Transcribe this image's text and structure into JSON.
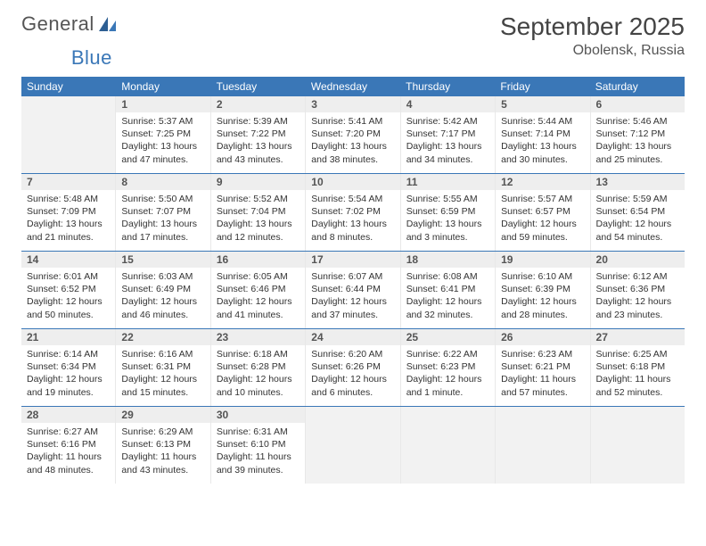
{
  "logo": {
    "text1": "General",
    "text2": "Blue"
  },
  "title": "September 2025",
  "location": "Obolensk, Russia",
  "weekdays": [
    "Sunday",
    "Monday",
    "Tuesday",
    "Wednesday",
    "Thursday",
    "Friday",
    "Saturday"
  ],
  "colors": {
    "header_bg": "#3a77b7",
    "header_fg": "#ffffff",
    "daynum_bg": "#eeeeee",
    "empty_bg": "#f2f2f2",
    "border": "#3a77b7",
    "text": "#333333"
  },
  "weeks": [
    [
      null,
      {
        "n": "1",
        "sunrise": "Sunrise: 5:37 AM",
        "sunset": "Sunset: 7:25 PM",
        "daylight": "Daylight: 13 hours and 47 minutes."
      },
      {
        "n": "2",
        "sunrise": "Sunrise: 5:39 AM",
        "sunset": "Sunset: 7:22 PM",
        "daylight": "Daylight: 13 hours and 43 minutes."
      },
      {
        "n": "3",
        "sunrise": "Sunrise: 5:41 AM",
        "sunset": "Sunset: 7:20 PM",
        "daylight": "Daylight: 13 hours and 38 minutes."
      },
      {
        "n": "4",
        "sunrise": "Sunrise: 5:42 AM",
        "sunset": "Sunset: 7:17 PM",
        "daylight": "Daylight: 13 hours and 34 minutes."
      },
      {
        "n": "5",
        "sunrise": "Sunrise: 5:44 AM",
        "sunset": "Sunset: 7:14 PM",
        "daylight": "Daylight: 13 hours and 30 minutes."
      },
      {
        "n": "6",
        "sunrise": "Sunrise: 5:46 AM",
        "sunset": "Sunset: 7:12 PM",
        "daylight": "Daylight: 13 hours and 25 minutes."
      }
    ],
    [
      {
        "n": "7",
        "sunrise": "Sunrise: 5:48 AM",
        "sunset": "Sunset: 7:09 PM",
        "daylight": "Daylight: 13 hours and 21 minutes."
      },
      {
        "n": "8",
        "sunrise": "Sunrise: 5:50 AM",
        "sunset": "Sunset: 7:07 PM",
        "daylight": "Daylight: 13 hours and 17 minutes."
      },
      {
        "n": "9",
        "sunrise": "Sunrise: 5:52 AM",
        "sunset": "Sunset: 7:04 PM",
        "daylight": "Daylight: 13 hours and 12 minutes."
      },
      {
        "n": "10",
        "sunrise": "Sunrise: 5:54 AM",
        "sunset": "Sunset: 7:02 PM",
        "daylight": "Daylight: 13 hours and 8 minutes."
      },
      {
        "n": "11",
        "sunrise": "Sunrise: 5:55 AM",
        "sunset": "Sunset: 6:59 PM",
        "daylight": "Daylight: 13 hours and 3 minutes."
      },
      {
        "n": "12",
        "sunrise": "Sunrise: 5:57 AM",
        "sunset": "Sunset: 6:57 PM",
        "daylight": "Daylight: 12 hours and 59 minutes."
      },
      {
        "n": "13",
        "sunrise": "Sunrise: 5:59 AM",
        "sunset": "Sunset: 6:54 PM",
        "daylight": "Daylight: 12 hours and 54 minutes."
      }
    ],
    [
      {
        "n": "14",
        "sunrise": "Sunrise: 6:01 AM",
        "sunset": "Sunset: 6:52 PM",
        "daylight": "Daylight: 12 hours and 50 minutes."
      },
      {
        "n": "15",
        "sunrise": "Sunrise: 6:03 AM",
        "sunset": "Sunset: 6:49 PM",
        "daylight": "Daylight: 12 hours and 46 minutes."
      },
      {
        "n": "16",
        "sunrise": "Sunrise: 6:05 AM",
        "sunset": "Sunset: 6:46 PM",
        "daylight": "Daylight: 12 hours and 41 minutes."
      },
      {
        "n": "17",
        "sunrise": "Sunrise: 6:07 AM",
        "sunset": "Sunset: 6:44 PM",
        "daylight": "Daylight: 12 hours and 37 minutes."
      },
      {
        "n": "18",
        "sunrise": "Sunrise: 6:08 AM",
        "sunset": "Sunset: 6:41 PM",
        "daylight": "Daylight: 12 hours and 32 minutes."
      },
      {
        "n": "19",
        "sunrise": "Sunrise: 6:10 AM",
        "sunset": "Sunset: 6:39 PM",
        "daylight": "Daylight: 12 hours and 28 minutes."
      },
      {
        "n": "20",
        "sunrise": "Sunrise: 6:12 AM",
        "sunset": "Sunset: 6:36 PM",
        "daylight": "Daylight: 12 hours and 23 minutes."
      }
    ],
    [
      {
        "n": "21",
        "sunrise": "Sunrise: 6:14 AM",
        "sunset": "Sunset: 6:34 PM",
        "daylight": "Daylight: 12 hours and 19 minutes."
      },
      {
        "n": "22",
        "sunrise": "Sunrise: 6:16 AM",
        "sunset": "Sunset: 6:31 PM",
        "daylight": "Daylight: 12 hours and 15 minutes."
      },
      {
        "n": "23",
        "sunrise": "Sunrise: 6:18 AM",
        "sunset": "Sunset: 6:28 PM",
        "daylight": "Daylight: 12 hours and 10 minutes."
      },
      {
        "n": "24",
        "sunrise": "Sunrise: 6:20 AM",
        "sunset": "Sunset: 6:26 PM",
        "daylight": "Daylight: 12 hours and 6 minutes."
      },
      {
        "n": "25",
        "sunrise": "Sunrise: 6:22 AM",
        "sunset": "Sunset: 6:23 PM",
        "daylight": "Daylight: 12 hours and 1 minute."
      },
      {
        "n": "26",
        "sunrise": "Sunrise: 6:23 AM",
        "sunset": "Sunset: 6:21 PM",
        "daylight": "Daylight: 11 hours and 57 minutes."
      },
      {
        "n": "27",
        "sunrise": "Sunrise: 6:25 AM",
        "sunset": "Sunset: 6:18 PM",
        "daylight": "Daylight: 11 hours and 52 minutes."
      }
    ],
    [
      {
        "n": "28",
        "sunrise": "Sunrise: 6:27 AM",
        "sunset": "Sunset: 6:16 PM",
        "daylight": "Daylight: 11 hours and 48 minutes."
      },
      {
        "n": "29",
        "sunrise": "Sunrise: 6:29 AM",
        "sunset": "Sunset: 6:13 PM",
        "daylight": "Daylight: 11 hours and 43 minutes."
      },
      {
        "n": "30",
        "sunrise": "Sunrise: 6:31 AM",
        "sunset": "Sunset: 6:10 PM",
        "daylight": "Daylight: 11 hours and 39 minutes."
      },
      null,
      null,
      null,
      null
    ]
  ]
}
